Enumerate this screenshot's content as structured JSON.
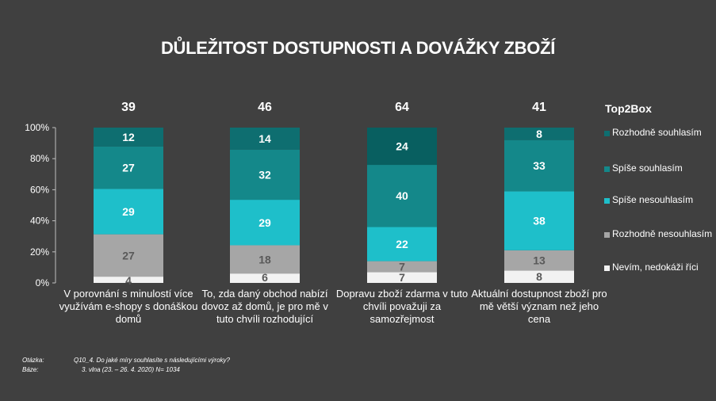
{
  "title": "DŮLEŽITOST DOSTUPNOSTI A DOVÁŽKY ZBOŽÍ",
  "top2box_label": "Top2Box",
  "colors": {
    "background": "#404040",
    "rozhodne_souhlasim": "#0e6e70",
    "spise_souhlasim": "#14888a",
    "spise_nesouhlasim": "#1ebfca",
    "rozhodne_nesouhlasim": "#a6a6a6",
    "nevim": "#f2f2f2",
    "dark_highlight": "#085f60"
  },
  "chart_data": {
    "type": "bar",
    "stacked": true,
    "categories": [
      "V porovnání s minulostí více využívám e-shopy s donáškou domů",
      "To, zda daný obchod nabízí dovoz až domů, je pro mě v tuto chvíli rozhodující",
      "Dopravu zboží zdarma v tuto chvíli považuji za samozřejmost",
      "Aktuální dostupnost zboží pro mě větší význam než jeho cena"
    ],
    "top2box": [
      39,
      46,
      64,
      41
    ],
    "series": [
      {
        "name": "Nevím, nedokáži říci",
        "values": [
          4,
          6,
          7,
          8
        ]
      },
      {
        "name": "Rozhodně nesouhlasím",
        "values": [
          27,
          18,
          7,
          13
        ]
      },
      {
        "name": "Spíše nesouhlasím",
        "values": [
          29,
          29,
          22,
          38
        ]
      },
      {
        "name": "Spíše souhlasím",
        "values": [
          27,
          32,
          40,
          33
        ]
      },
      {
        "name": "Rozhodně souhlasím",
        "values": [
          12,
          14,
          24,
          8
        ]
      }
    ],
    "yticks": [
      "0%",
      "20%",
      "40%",
      "60%",
      "80%",
      "100%"
    ],
    "ylim": [
      0,
      100
    ],
    "grid": false,
    "legend_position": "right"
  },
  "legend": [
    "Rozhodně souhlasím",
    "Spíše souhlasím",
    "Spíše nesouhlasím",
    "Rozhodně nesouhlasím",
    "Nevím, nedokáži říci"
  ],
  "notes": {
    "question_label": "Otázka:",
    "question_text": "Q10_4. Do jaké míry souhlasíte s následujícími výroky?",
    "base_label": "Báze:",
    "base_text": "3. vlna (23. – 26. 4. 2020) N= 1034"
  }
}
